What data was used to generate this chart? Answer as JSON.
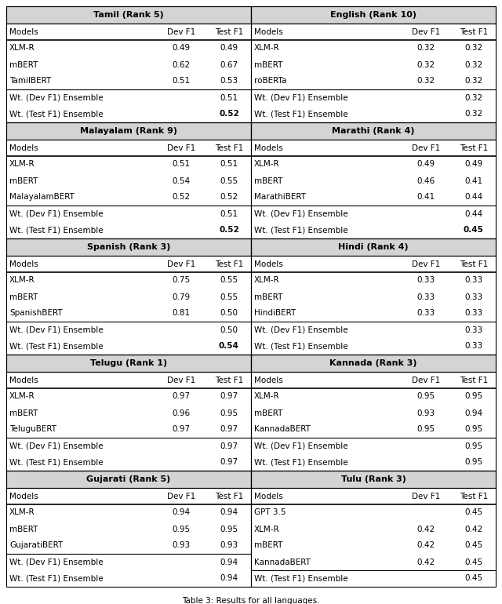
{
  "sections": [
    {
      "title": "Tamil (Rank 5)",
      "models": [
        {
          "name": "XLM-R",
          "dev": "0.49",
          "test": "0.49"
        },
        {
          "name": "mBERT",
          "dev": "0.62",
          "test": "0.67"
        },
        {
          "name": "TamilBERT",
          "dev": "0.51",
          "test": "0.53"
        }
      ],
      "ensemble_dev": {
        "test": "0.51"
      },
      "ensemble_test": {
        "test": "0.52",
        "bold": true
      }
    },
    {
      "title": "English (Rank 10)",
      "models": [
        {
          "name": "XLM-R",
          "dev": "0.32",
          "test": "0.32"
        },
        {
          "name": "mBERT",
          "dev": "0.32",
          "test": "0.32"
        },
        {
          "name": "roBERTa",
          "dev": "0.32",
          "test": "0.32"
        }
      ],
      "ensemble_dev": {
        "test": "0.32"
      },
      "ensemble_test": {
        "test": "0.32",
        "bold": false
      }
    },
    {
      "title": "Malayalam (Rank 9)",
      "models": [
        {
          "name": "XLM-R",
          "dev": "0.51",
          "test": "0.51"
        },
        {
          "name": "mBERT",
          "dev": "0.54",
          "test": "0.55"
        },
        {
          "name": "MalayalamBERT",
          "dev": "0.52",
          "test": "0.52"
        }
      ],
      "ensemble_dev": {
        "test": "0.51"
      },
      "ensemble_test": {
        "test": "0.52",
        "bold": true
      }
    },
    {
      "title": "Marathi (Rank 4)",
      "models": [
        {
          "name": "XLM-R",
          "dev": "0.49",
          "test": "0.49"
        },
        {
          "name": "mBERT",
          "dev": "0.46",
          "test": "0.41"
        },
        {
          "name": "MarathiBERT",
          "dev": "0.41",
          "test": "0.44"
        }
      ],
      "ensemble_dev": {
        "test": "0.44"
      },
      "ensemble_test": {
        "test": "0.45",
        "bold": true
      }
    },
    {
      "title": "Spanish (Rank 3)",
      "models": [
        {
          "name": "XLM-R",
          "dev": "0.75",
          "test": "0.55"
        },
        {
          "name": "mBERT",
          "dev": "0.79",
          "test": "0.55"
        },
        {
          "name": "SpanishBERT",
          "dev": "0.81",
          "test": "0.50"
        }
      ],
      "ensemble_dev": {
        "test": "0.50"
      },
      "ensemble_test": {
        "test": "0.54",
        "bold": true
      }
    },
    {
      "title": "Hindi (Rank 4)",
      "models": [
        {
          "name": "XLM-R",
          "dev": "0.33",
          "test": "0.33"
        },
        {
          "name": "mBERT",
          "dev": "0.33",
          "test": "0.33"
        },
        {
          "name": "HindiBERT",
          "dev": "0.33",
          "test": "0.33"
        }
      ],
      "ensemble_dev": {
        "test": "0.33"
      },
      "ensemble_test": {
        "test": "0.33",
        "bold": false
      }
    },
    {
      "title": "Telugu (Rank 1)",
      "models": [
        {
          "name": "XLM-R",
          "dev": "0.97",
          "test": "0.97"
        },
        {
          "name": "mBERT",
          "dev": "0.96",
          "test": "0.95"
        },
        {
          "name": "TeluguBERT",
          "dev": "0.97",
          "test": "0.97"
        }
      ],
      "ensemble_dev": {
        "test": "0.97"
      },
      "ensemble_test": {
        "test": "0.97",
        "bold": false
      }
    },
    {
      "title": "Kannada (Rank 3)",
      "models": [
        {
          "name": "XLM-R",
          "dev": "0.95",
          "test": "0.95"
        },
        {
          "name": "mBERT",
          "dev": "0.93",
          "test": "0.94"
        },
        {
          "name": "KannadaBERT",
          "dev": "0.95",
          "test": "0.95"
        }
      ],
      "ensemble_dev": {
        "test": "0.95"
      },
      "ensemble_test": {
        "test": "0.95",
        "bold": false
      }
    },
    {
      "title": "Gujarati (Rank 5)",
      "models": [
        {
          "name": "XLM-R",
          "dev": "0.94",
          "test": "0.94"
        },
        {
          "name": "mBERT",
          "dev": "0.95",
          "test": "0.95"
        },
        {
          "name": "GujaratiBERT",
          "dev": "0.93",
          "test": "0.93"
        }
      ],
      "ensemble_dev": {
        "test": "0.94"
      },
      "ensemble_test": {
        "test": "0.94",
        "bold": false
      }
    },
    {
      "title": "Tulu (Rank 3)",
      "models": [
        {
          "name": "GPT 3.5",
          "dev": "",
          "test": "0.45"
        },
        {
          "name": "XLM-R",
          "dev": "0.42",
          "test": "0.42"
        },
        {
          "name": "mBERT",
          "dev": "0.42",
          "test": "0.45"
        },
        {
          "name": "KannadaBERT",
          "dev": "0.42",
          "test": "0.45"
        }
      ],
      "ensemble_dev": null,
      "ensemble_test": {
        "test": "0.45",
        "bold": false
      }
    }
  ],
  "caption": "Table 3: Results for all languages.",
  "title_bg_color": "#d4d4d4",
  "border_color": "black",
  "lw": 0.8,
  "title_fs": 8.0,
  "header_fs": 7.5,
  "row_fs": 7.5,
  "caption_fs": 7.5
}
